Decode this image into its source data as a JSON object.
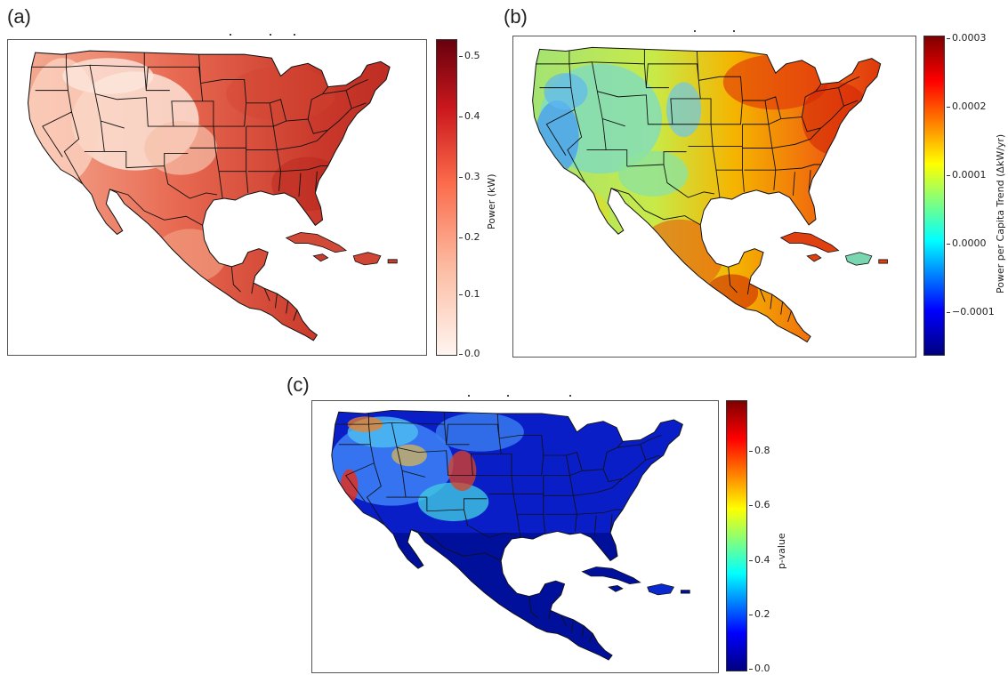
{
  "panels": [
    {
      "id": "a",
      "label": "(a)",
      "colorbar": {
        "label": "Power (kW)",
        "ticks": [
          "0.5",
          "0.4",
          "0.3",
          "0.2",
          "0.1",
          "0.0"
        ],
        "range": [
          0.0,
          0.52
        ],
        "colormap": "Reds",
        "colors": [
          "#fff5f0",
          "#fcbba1",
          "#fb6a4a",
          "#cb181d",
          "#67000d"
        ]
      }
    },
    {
      "id": "b",
      "label": "(b)",
      "colorbar": {
        "label": "Power per Capita Trend (ΔkW/yr)",
        "ticks": [
          "0.0003",
          "0.0002",
          "0.0001",
          "0.0000",
          "−0.0001"
        ],
        "range": [
          -0.00017,
          0.0003
        ],
        "colormap": "jet",
        "colors": [
          "#00007f",
          "#0000ff",
          "#00ffff",
          "#ffff00",
          "#ff0000",
          "#7f0000"
        ]
      }
    },
    {
      "id": "c",
      "label": "(c)",
      "colorbar": {
        "label": "p-value",
        "ticks": [
          "0.8",
          "0.6",
          "0.4",
          "0.2",
          "0.0"
        ],
        "range": [
          0.0,
          0.98
        ],
        "colormap": "jet",
        "colors": [
          "#00007f",
          "#0000ff",
          "#00ffff",
          "#ffff00",
          "#ff0000",
          "#7f0000"
        ]
      }
    }
  ]
}
